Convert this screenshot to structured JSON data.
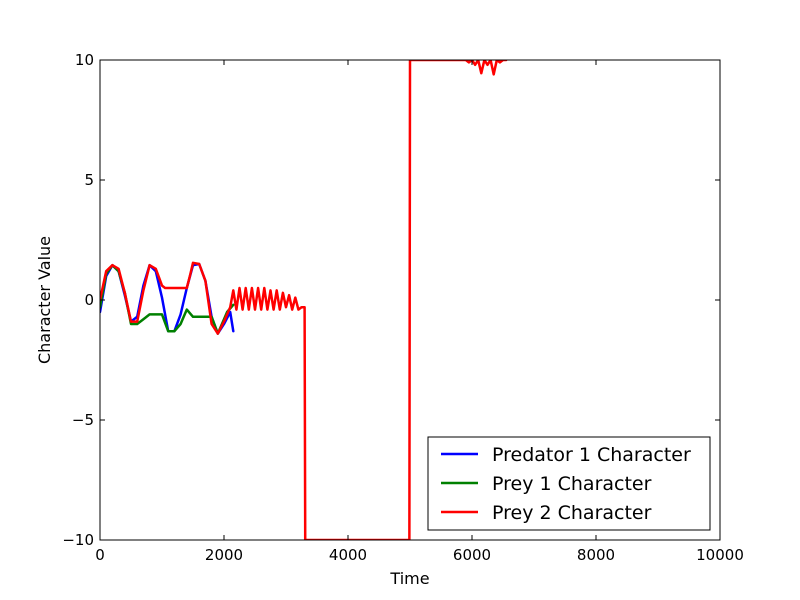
{
  "chart_data": {
    "type": "line",
    "title": "",
    "xlabel": "Time",
    "ylabel": "Character Value",
    "xlim": [
      0,
      10000
    ],
    "ylim": [
      -10,
      10
    ],
    "xticks": [
      0,
      2000,
      4000,
      6000,
      8000,
      10000
    ],
    "xtick_labels": [
      "0",
      "2000",
      "4000",
      "6000",
      "8000",
      "10000"
    ],
    "yticks": [
      -10,
      -5,
      0,
      5,
      10
    ],
    "ytick_labels": [
      "−10",
      "−5",
      "0",
      "5",
      "10"
    ],
    "grid": false,
    "legend_position": "lower-right",
    "series": [
      {
        "name": "Predator 1 Character",
        "color": "#0000ff",
        "x": [
          0,
          100,
          200,
          300,
          400,
          500,
          600,
          700,
          800,
          900,
          1000,
          1100,
          1200,
          1300,
          1400,
          1500,
          1600,
          1700,
          1800,
          1900,
          2000,
          2100,
          2150
        ],
        "y": [
          -0.5,
          1.0,
          1.45,
          1.2,
          0.2,
          -0.9,
          -0.7,
          0.6,
          1.45,
          1.2,
          0.1,
          -1.3,
          -1.3,
          -0.6,
          0.5,
          1.45,
          1.5,
          0.8,
          -0.7,
          -1.4,
          -1.0,
          -0.5,
          -1.3
        ]
      },
      {
        "name": "Prey 1 Character",
        "color": "#008000",
        "x": [
          0,
          100,
          200,
          300,
          400,
          500,
          600,
          700,
          800,
          900,
          1000,
          1100,
          1200,
          1300,
          1350,
          1400,
          1500,
          1600,
          1700,
          1800,
          1900,
          2000,
          2050,
          2150
        ],
        "y": [
          -0.3,
          1.1,
          1.45,
          1.2,
          0.3,
          -1.0,
          -1.0,
          -0.8,
          -0.6,
          -0.6,
          -0.6,
          -1.3,
          -1.3,
          -1.0,
          -0.7,
          -0.4,
          -0.7,
          -0.7,
          -0.7,
          -0.7,
          -1.4,
          -0.8,
          -0.5,
          -0.2
        ]
      },
      {
        "name": "Prey 2 Character",
        "color": "#ff0000",
        "x": [
          0,
          100,
          200,
          300,
          400,
          500,
          600,
          700,
          800,
          900,
          1000,
          1050,
          1100,
          1200,
          1300,
          1400,
          1450,
          1500,
          1600,
          1700,
          1800,
          1900,
          2000,
          2100,
          2150,
          2200,
          2250,
          2300,
          2350,
          2400,
          2450,
          2500,
          2550,
          2600,
          2650,
          2700,
          2750,
          2800,
          2850,
          2900,
          2950,
          3000,
          3050,
          3100,
          3150,
          3200,
          3250,
          3300,
          3310,
          3320,
          4990,
          5000,
          5010,
          5100,
          5200,
          5300,
          5400,
          5500,
          5600,
          5700,
          5800,
          5900,
          5950,
          6000,
          6050,
          6100,
          6150,
          6200,
          6250,
          6300,
          6350,
          6400,
          6450,
          6500,
          6550
        ],
        "y": [
          0,
          1.2,
          1.45,
          1.3,
          0.3,
          -0.9,
          -0.9,
          0.4,
          1.45,
          1.3,
          0.6,
          0.5,
          0.5,
          0.5,
          0.5,
          0.5,
          1.0,
          1.55,
          1.5,
          0.8,
          -1.0,
          -1.4,
          -0.9,
          -0.3,
          0.4,
          -0.4,
          0.5,
          -0.4,
          0.5,
          -0.4,
          0.5,
          -0.4,
          0.5,
          -0.4,
          0.5,
          -0.4,
          0.4,
          -0.4,
          0.4,
          -0.4,
          0.3,
          -0.3,
          0.2,
          -0.4,
          0.1,
          -0.4,
          -0.3,
          -0.3,
          -10,
          -10,
          -10,
          10,
          10,
          10,
          10,
          10,
          10,
          10,
          10,
          10,
          10,
          10,
          9.9,
          10,
          9.8,
          10,
          9.45,
          10,
          9.8,
          10,
          9.4,
          10,
          9.9,
          10,
          10
        ]
      }
    ]
  }
}
